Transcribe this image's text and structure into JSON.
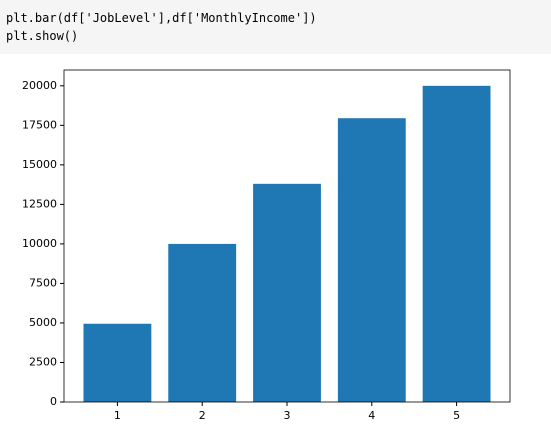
{
  "code": [
    "plt.bar(df['JobLevel'],df['MonthlyIncome'])",
    "plt.show()"
  ],
  "chart_data": {
    "type": "bar",
    "x": [
      1,
      2,
      3,
      4,
      5
    ],
    "values": [
      4950,
      10000,
      13800,
      17950,
      19999
    ],
    "color": "#1f77b4",
    "bar_width": 0.8,
    "xlim": [
      0.37,
      5.63
    ],
    "xticks": [
      1,
      2,
      3,
      4,
      5
    ],
    "ylim": [
      0,
      21000
    ],
    "yticks": [
      0,
      2500,
      5000,
      7500,
      10000,
      12500,
      15000,
      17500,
      20000
    ],
    "grid": false
  }
}
